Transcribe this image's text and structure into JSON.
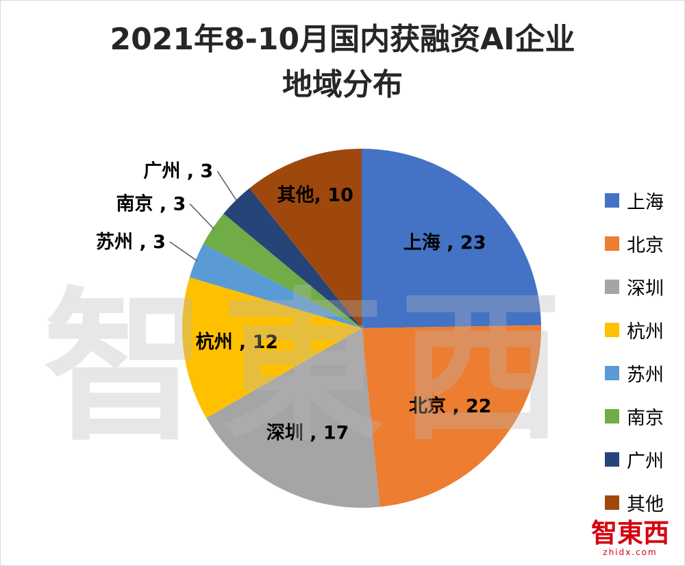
{
  "title": {
    "line1": "2021年8-10月国内获融资AI企业",
    "line2": "地域分布"
  },
  "chart_data": {
    "type": "pie",
    "title": "2021年8-10月国内获融资AI企业地域分布",
    "categories": [
      "上海",
      "北京",
      "深圳",
      "杭州",
      "苏州",
      "南京",
      "广州",
      "其他"
    ],
    "values": [
      23,
      22,
      17,
      12,
      3,
      3,
      3,
      10
    ],
    "colors": [
      "#4472C4",
      "#ED7D31",
      "#A5A5A5",
      "#FFC000",
      "#5B9BD5",
      "#70AD47",
      "#264478",
      "#9E480E"
    ],
    "total": 93,
    "data_labels": [
      "上海 , 23",
      "北京 , 22",
      "深圳 , 17",
      "杭州 , 12",
      "苏州 , 3",
      "南京 , 3",
      "广州 , 3",
      "其他, 10"
    ],
    "legend_position": "right",
    "start_angle_deg": 0,
    "direction": "clockwise",
    "label_separator": " , "
  },
  "watermark": {
    "text": "智東西"
  },
  "logo": {
    "text": "智東西",
    "subtext": "zhidx.com"
  }
}
